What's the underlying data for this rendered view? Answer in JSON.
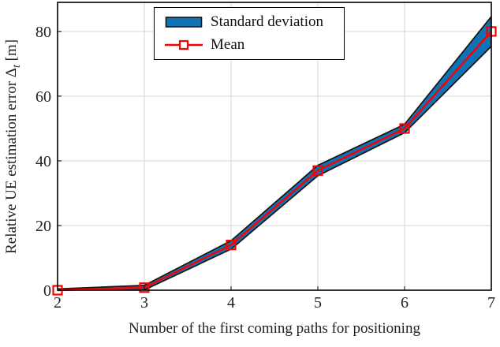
{
  "figure": {
    "xlabel": "Number of the first coming paths for positioning",
    "ylabel_prefix": "Relative UE estimation error Δ",
    "ylabel_sub": "t",
    "ylabel_suffix": " [m]"
  },
  "chart_data": {
    "type": "line",
    "title": "",
    "xlabel": "Number of the first coming paths for positioning",
    "ylabel": "Relative UE estimation error Δt [m]",
    "x": [
      2,
      3,
      4,
      5,
      6,
      7
    ],
    "series": [
      {
        "name": "Mean",
        "style": "line+square-markers",
        "values": [
          0,
          0.8,
          14,
          37,
          50,
          80
        ]
      },
      {
        "name": "Standard deviation",
        "style": "band-around-mean",
        "std": [
          0.4,
          0.7,
          1.3,
          1.6,
          1.3,
          4.6
        ]
      }
    ],
    "x_ticks": [
      2,
      3,
      4,
      5,
      6,
      7
    ],
    "y_ticks": [
      0,
      20,
      40,
      60,
      80
    ],
    "xlim": [
      2,
      7
    ],
    "ylim": [
      0,
      89
    ],
    "grid": true,
    "legend": [
      "Standard deviation",
      "Mean"
    ],
    "legend_position": "top-center-inside",
    "colors": {
      "band": "#0f72b5",
      "band_edge": "#141414",
      "mean": "#fa0000",
      "grid": "#d6d6d6",
      "axis": "#000000"
    }
  }
}
